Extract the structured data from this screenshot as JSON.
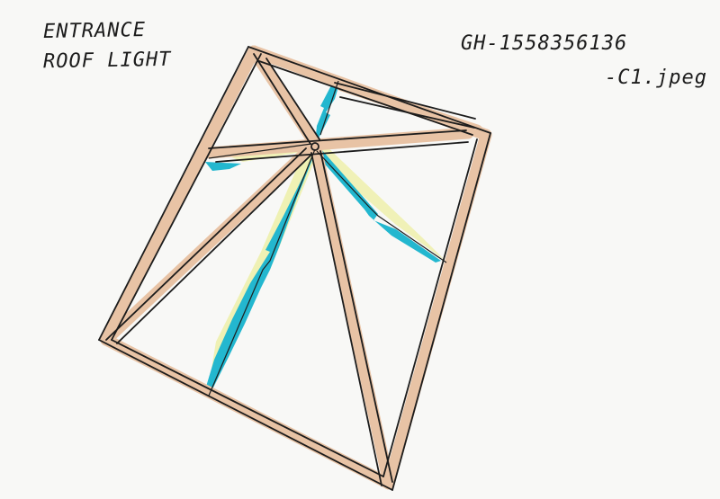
{
  "sketch": {
    "title_line_1": "ENTRANCE",
    "title_line_2": "ROOF LIGHT",
    "reference_line_1": "GH-1558356136",
    "reference_line_2": "-C1.jpeg"
  },
  "colors": {
    "paper": "#f8f8f6",
    "ink": "#1c1c1c",
    "timber_wash": "#e8c3a5",
    "glass_blue": "#23b7cf",
    "glass_yellow": "#eef0b0"
  }
}
